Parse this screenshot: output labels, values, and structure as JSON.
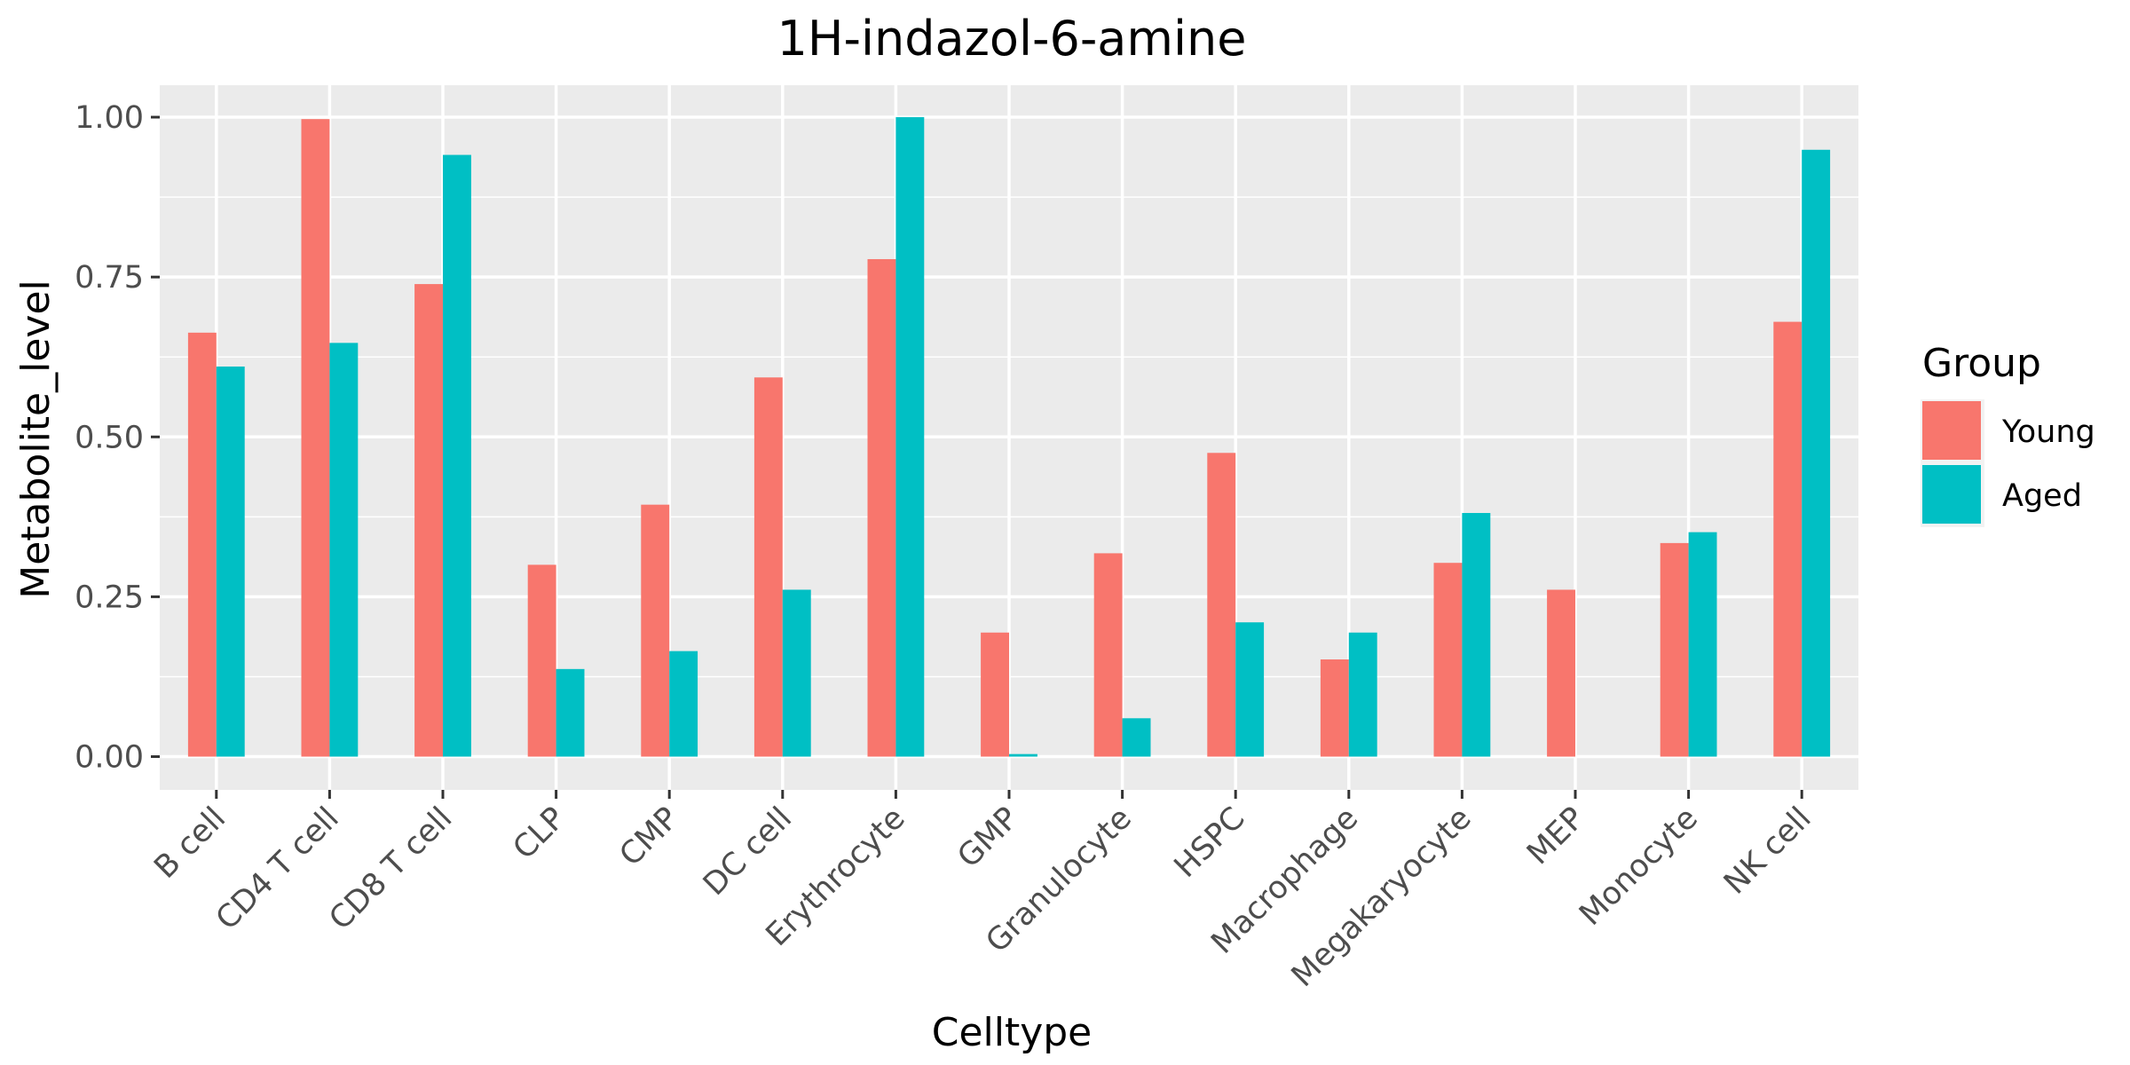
{
  "chart_data": {
    "type": "bar",
    "title": "1H-indazol-6-amine",
    "xlabel": "Celltype",
    "ylabel": "Metabolite_level",
    "categories": [
      "B cell",
      "CD4 T cell",
      "CD8 T cell",
      "CLP",
      "CMP",
      "DC cell",
      "Erythrocyte",
      "GMP",
      "Granulocyte",
      "HSPC",
      "Macrophage",
      "Megakaryocyte",
      "MEP",
      "Monocyte",
      "NK cell"
    ],
    "series": [
      {
        "name": "Young",
        "color": "#F8766D",
        "values": [
          0.663,
          0.997,
          0.739,
          0.3,
          0.394,
          0.593,
          0.778,
          0.194,
          0.318,
          0.475,
          0.152,
          0.303,
          0.261,
          0.334,
          0.68
        ]
      },
      {
        "name": "Aged",
        "color": "#00BFC4",
        "values": [
          0.61,
          0.647,
          0.941,
          0.137,
          0.165,
          0.261,
          1.0,
          0.004,
          0.06,
          0.21,
          0.194,
          0.381,
          0.0,
          0.351,
          0.949
        ]
      }
    ],
    "ylim": [
      -0.052,
      1.05
    ],
    "yticks": [
      0.0,
      0.25,
      0.5,
      0.75,
      1.0
    ],
    "ytick_labels": [
      "0.00",
      "0.25",
      "0.50",
      "0.75",
      "1.00"
    ],
    "grid": true,
    "panel_color": "#EBEBEB",
    "legend": {
      "title": "Group",
      "position": "right"
    }
  }
}
